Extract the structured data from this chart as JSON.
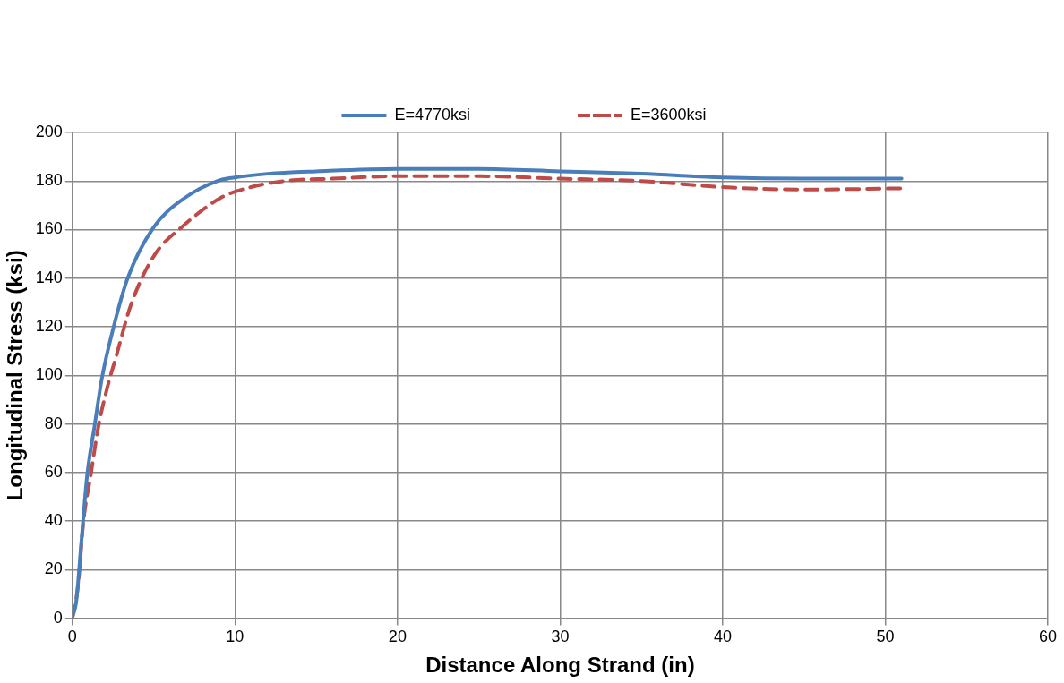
{
  "chart_data": {
    "type": "line",
    "xlabel": "Distance Along Strand (in)",
    "ylabel": "Longitudinal Stress (ksi)",
    "xlim": [
      0,
      60
    ],
    "xticks": [
      0,
      10,
      20,
      30,
      40,
      50,
      60
    ],
    "ylim": [
      0,
      200
    ],
    "yticks": [
      0,
      20,
      40,
      60,
      80,
      100,
      120,
      140,
      160,
      180,
      200
    ],
    "grid": true,
    "legend": "top",
    "marker": "none",
    "series": [
      {
        "name": "E=4770ksi",
        "color": "#4a7ebb",
        "line_style": "solid",
        "x": [
          0,
          0.23,
          0.57,
          0.91,
          1.36,
          1.82,
          2.5,
          3.4,
          5.0,
          6.9,
          8.9,
          10,
          12,
          15,
          20,
          25,
          30,
          35,
          40,
          45,
          51
        ],
        "values": [
          0.5,
          6.5,
          33,
          59,
          79,
          99,
          119,
          140,
          161,
          173,
          180,
          181.5,
          183,
          184,
          185,
          185,
          184,
          183,
          181.5,
          181,
          181
        ]
      },
      {
        "name": "E=3600ksi",
        "color": "#be4b48",
        "line_style": "dashed",
        "x": [
          0,
          0.34,
          0.68,
          1.13,
          1.6,
          2.15,
          2.7,
          3.6,
          5.0,
          6.9,
          9.1,
          10.7,
          13,
          16,
          20,
          25,
          30,
          35,
          40,
          45,
          51
        ],
        "values": [
          0,
          13,
          40,
          59,
          79,
          95,
          108,
          129,
          149,
          162,
          173,
          177,
          180,
          181,
          182,
          182,
          181,
          180,
          177.5,
          176.5,
          177
        ]
      }
    ]
  }
}
